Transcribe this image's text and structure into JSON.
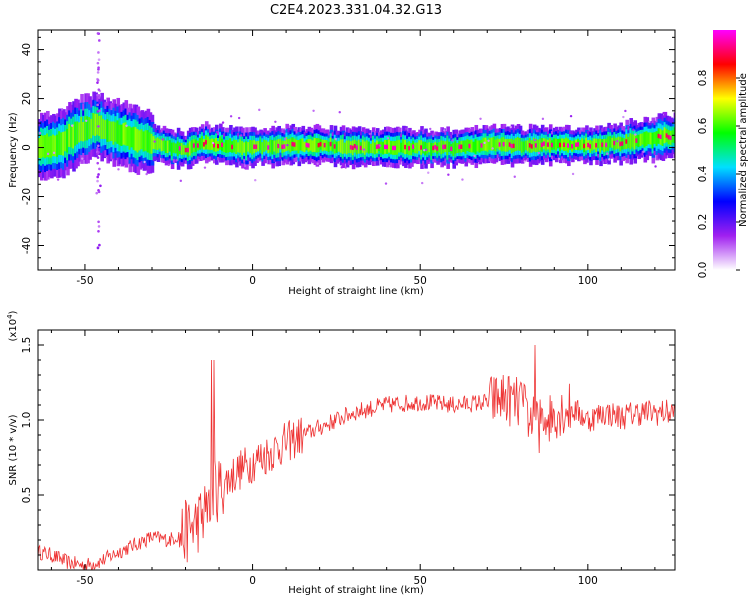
{
  "title": "C2E4.2023.331.04.32.G13",
  "chart_data": [
    {
      "type": "heatmap",
      "xlabel": "Height of straight line (km)",
      "ylabel": "Frequency (Hz)",
      "xlim": [
        -64,
        126
      ],
      "ylim": [
        -50,
        48
      ],
      "xticks": [
        -50,
        0,
        50,
        100
      ],
      "yticks": [
        -40,
        -20,
        0,
        20,
        40
      ],
      "colorbar": {
        "label": "Normalized spectral amplitude",
        "ticks": [
          "0.0",
          "0.2",
          "0.4",
          "0.6",
          "0.8"
        ],
        "range": [
          0,
          1
        ],
        "colors": [
          "#ffffff",
          "#a020f0",
          "#0000ff",
          "#00e0ff",
          "#00ff00",
          "#ffff00",
          "#ff0000",
          "#ff00ff"
        ]
      },
      "ridge": {
        "x": [
          -64,
          -58,
          -55,
          -50,
          -47,
          -45,
          -42,
          -38,
          -35,
          -30,
          -25,
          -20,
          -15,
          -10,
          0,
          10,
          20,
          30,
          40,
          50,
          60,
          70,
          80,
          90,
          100,
          110,
          115,
          120,
          126
        ],
        "y": [
          0,
          1,
          4,
          8,
          9,
          8,
          6,
          5,
          3,
          2,
          0,
          -1,
          2,
          1,
          0,
          1,
          1,
          0,
          0,
          0,
          0,
          1,
          1,
          1,
          1,
          2,
          3,
          4,
          5
        ]
      }
    },
    {
      "type": "line",
      "xlabel": "Height of straight line (km)",
      "ylabel": "SNR (10 * v/v)",
      "yscale_label": "(x10",
      "yscale_exp": "4",
      "yscale_close": ")",
      "xlim": [
        -64,
        126
      ],
      "ylim": [
        0.0,
        1.6
      ],
      "xticks": [
        -50,
        0,
        50,
        100
      ],
      "yticks": [
        "0.5",
        "1.0",
        "1.5"
      ],
      "ytick_values": [
        0.5,
        1.0,
        1.5
      ],
      "color": "#ee3333",
      "anchors": {
        "x": [
          -64,
          -60,
          -55,
          -50,
          -45,
          -40,
          -35,
          -30,
          -25,
          -20,
          -15,
          -12,
          -10,
          -5,
          0,
          5,
          10,
          20,
          25,
          30,
          40,
          50,
          60,
          70,
          75,
          80,
          82,
          85,
          88,
          90,
          95,
          100,
          105,
          110,
          115,
          120,
          126
        ],
        "y": [
          0.12,
          0.1,
          0.05,
          0.03,
          0.06,
          0.12,
          0.17,
          0.22,
          0.2,
          0.25,
          0.35,
          0.5,
          0.55,
          0.65,
          0.72,
          0.78,
          0.85,
          0.95,
          1.0,
          1.05,
          1.1,
          1.12,
          1.1,
          1.12,
          1.15,
          1.1,
          1.05,
          0.95,
          1.0,
          1.05,
          1.08,
          1.0,
          1.05,
          1.02,
          1.05,
          1.05,
          1.05
        ]
      }
    }
  ]
}
